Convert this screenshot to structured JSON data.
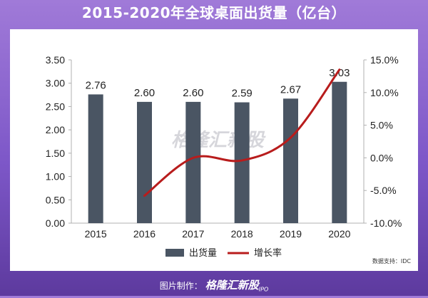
{
  "title": "2015-2020年全球桌面出货量（亿台）",
  "watermark": "格隆汇新股",
  "source": "数据支持：IDC",
  "footer": {
    "label": "图片制作：",
    "logo": "格隆汇新股",
    "logo_sub": "IPO"
  },
  "colors": {
    "bar": "#4a5563",
    "line": "#b81c1c",
    "axis": "#b0b0b0"
  },
  "chart_data": {
    "type": "bar",
    "categories": [
      "2015",
      "2016",
      "2017",
      "2018",
      "2019",
      "2020"
    ],
    "series": [
      {
        "name": "出货量",
        "type": "bar",
        "axis": "left",
        "values": [
          2.76,
          2.6,
          2.6,
          2.59,
          2.67,
          3.03
        ],
        "labels": [
          "2.76",
          "2.60",
          "2.60",
          "2.59",
          "2.67",
          "3.03"
        ]
      },
      {
        "name": "增长率",
        "type": "line",
        "axis": "right",
        "values": [
          null,
          -5.8,
          0.0,
          -0.4,
          3.1,
          13.5
        ]
      }
    ],
    "y_left": {
      "min": 0,
      "max": 3.5,
      "ticks": [
        "0.00",
        "0.50",
        "1.00",
        "1.50",
        "2.00",
        "2.50",
        "3.00",
        "3.50"
      ]
    },
    "y_right": {
      "min": -10,
      "max": 15,
      "ticks": [
        "-10.0%",
        "-5.0%",
        "0.0%",
        "5.0%",
        "10.0%",
        "15.0%"
      ]
    },
    "grid": false,
    "legend": "bottom"
  }
}
